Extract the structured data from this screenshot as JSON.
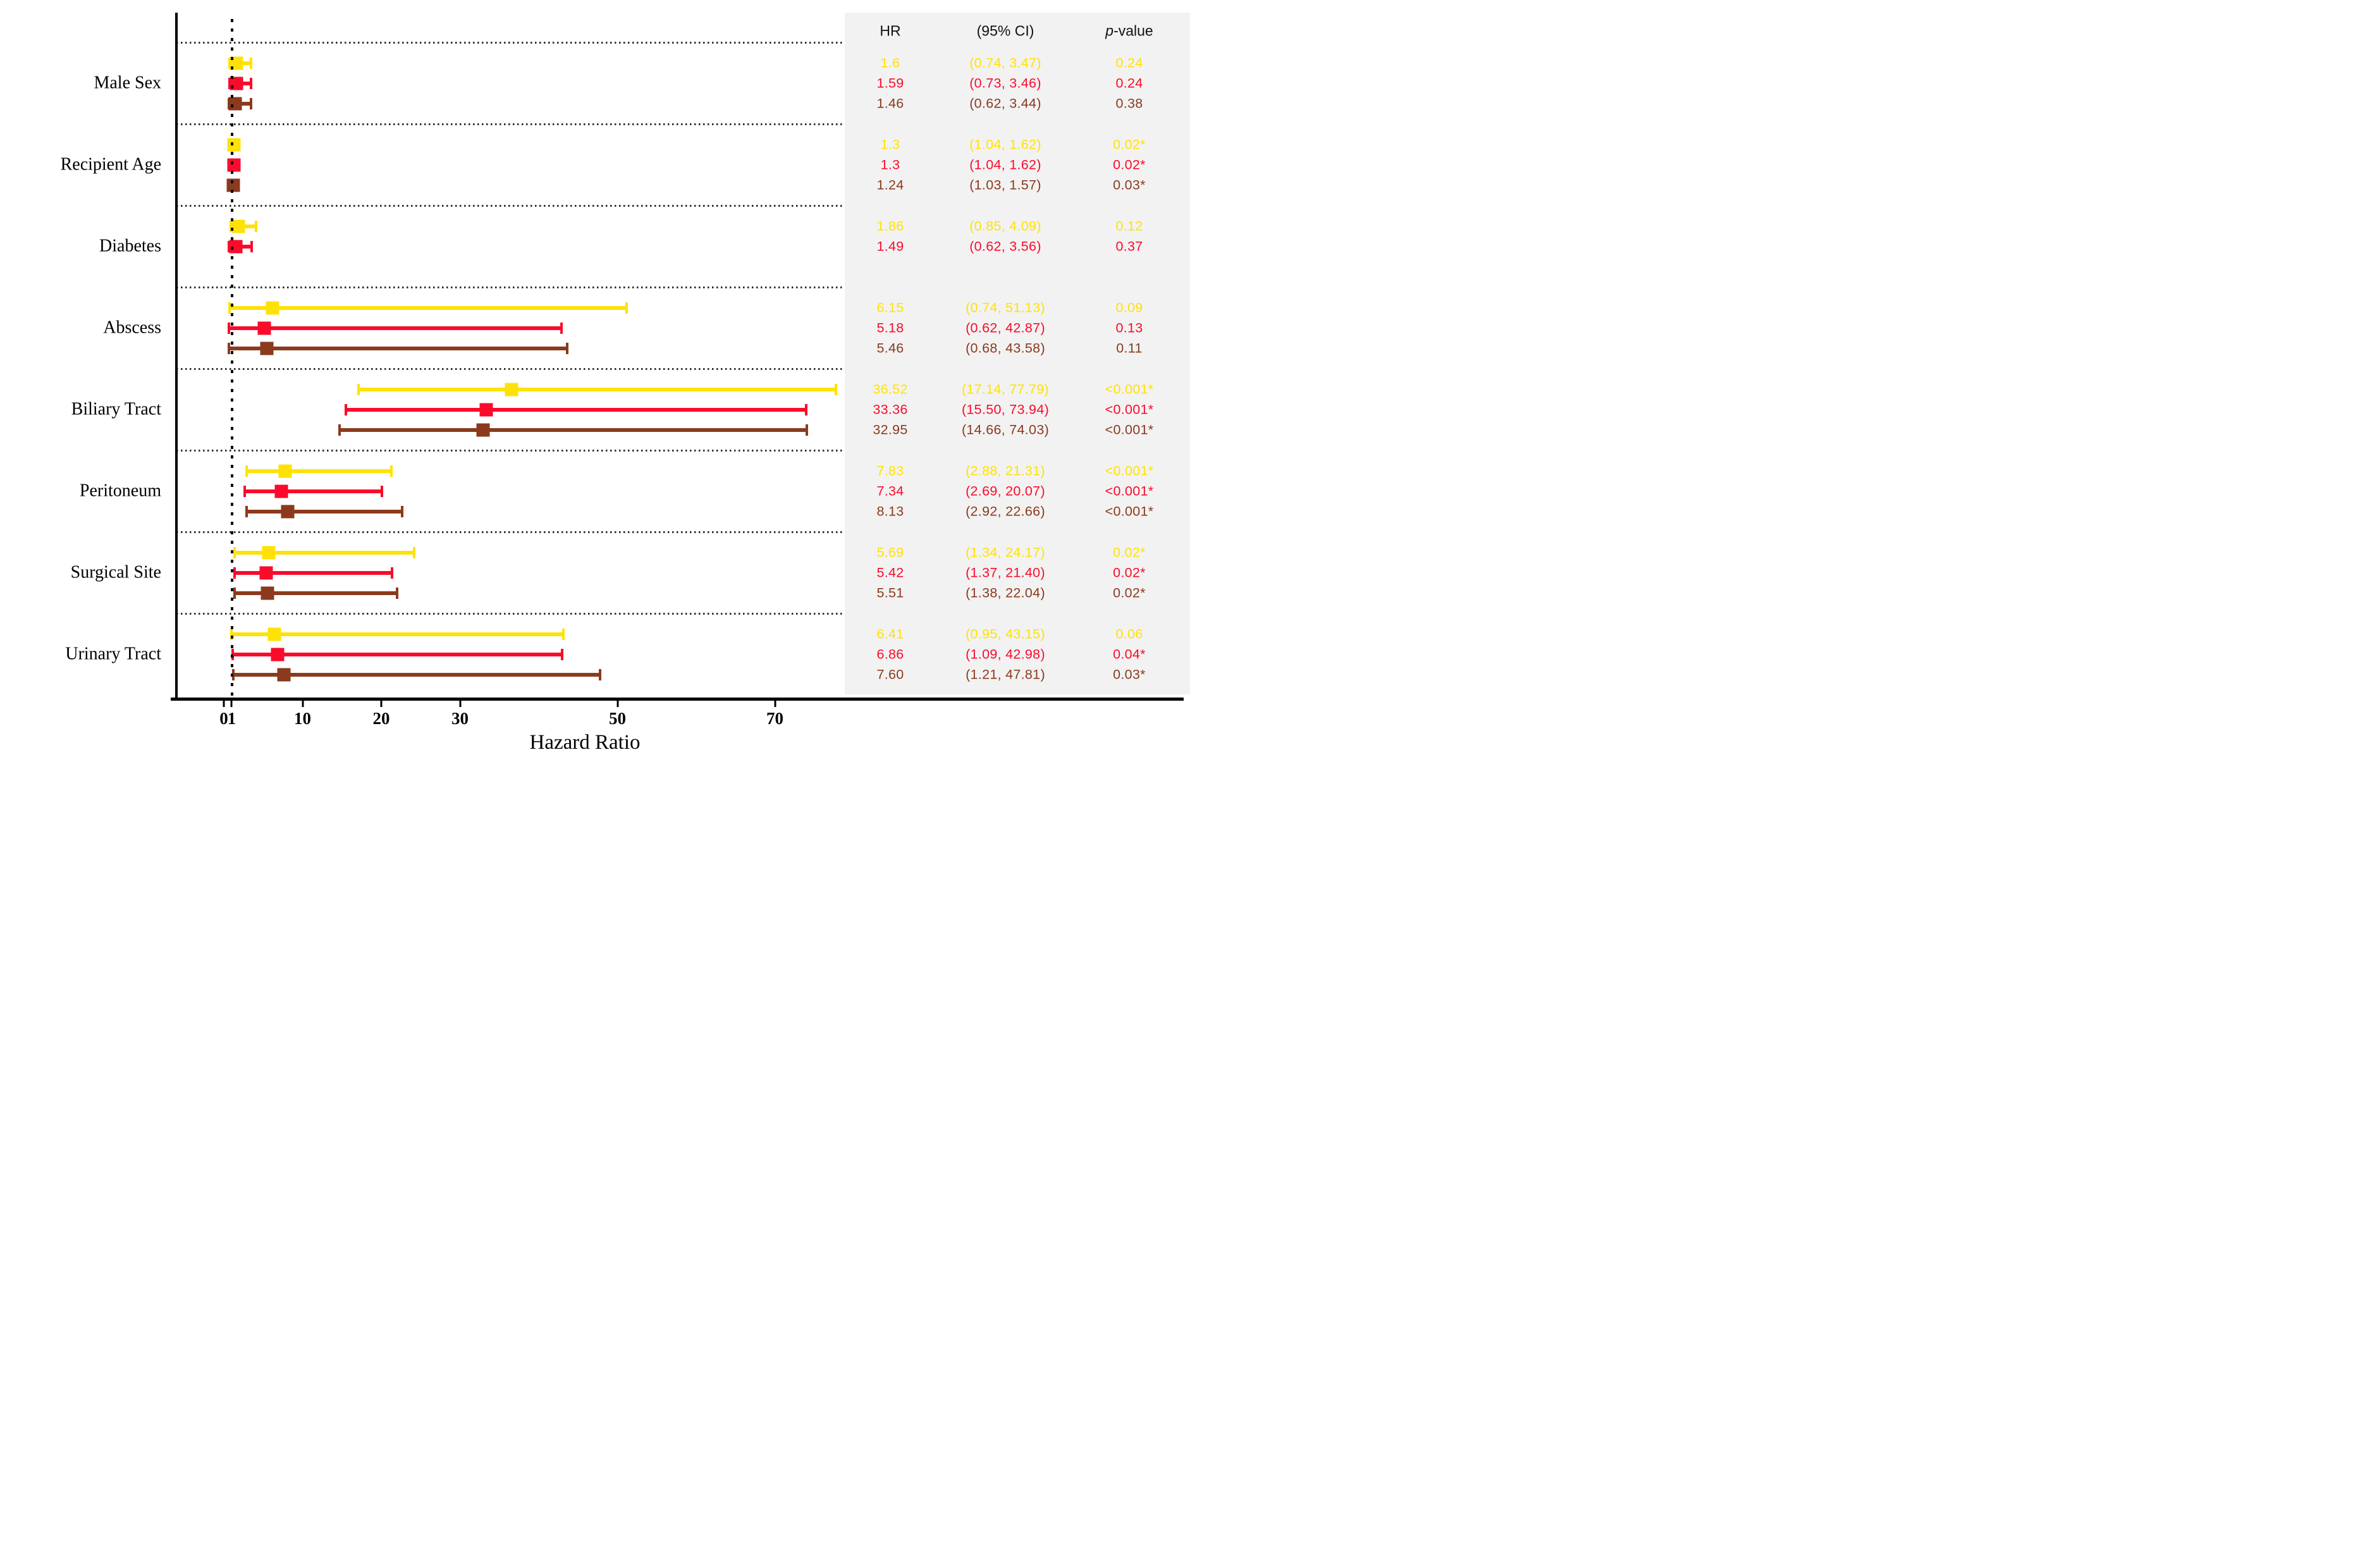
{
  "figure": {
    "x_axis_title": "Hazard Ratio",
    "table_headers": {
      "hr": "HR",
      "ci": "(95% CI)",
      "p_italic": "p",
      "p_rest": "-value"
    }
  },
  "chart_data": {
    "type": "forest",
    "title": "",
    "xlabel": "Hazard Ratio",
    "ylabel": "",
    "x_axis": {
      "scale": "linear",
      "ticks": [
        0,
        1,
        10,
        20,
        30,
        50,
        70
      ],
      "range": [
        -6,
        79
      ],
      "reference_line": 1
    },
    "grid": "dotted horizontal separators between groups, dotted vertical reference line at HR=1",
    "legend_position": "none",
    "table_headers": [
      "HR",
      "(95% CI)",
      "p-value"
    ],
    "series_colors": {
      "yellow": "#FFE205",
      "red": "#FB0B2B",
      "brown": "#8B3A1D"
    },
    "series_order": [
      "yellow",
      "red",
      "brown"
    ],
    "groups": [
      {
        "label": "Male Sex",
        "rows": [
          {
            "series": "yellow",
            "hr": 1.6,
            "lo": 0.74,
            "hi": 3.47,
            "hr_text": "1.6",
            "ci_text": "(0.74, 3.47)",
            "p_text": "0.24"
          },
          {
            "series": "red",
            "hr": 1.59,
            "lo": 0.73,
            "hi": 3.46,
            "hr_text": "1.59",
            "ci_text": "(0.73, 3.46)",
            "p_text": "0.24"
          },
          {
            "series": "brown",
            "hr": 1.46,
            "lo": 0.62,
            "hi": 3.44,
            "hr_text": "1.46",
            "ci_text": "(0.62, 3.44)",
            "p_text": "0.38"
          }
        ]
      },
      {
        "label": "Recipient Age",
        "rows": [
          {
            "series": "yellow",
            "hr": 1.3,
            "lo": 1.04,
            "hi": 1.62,
            "hr_text": "1.3",
            "ci_text": "(1.04, 1.62)",
            "p_text": "0.02*"
          },
          {
            "series": "red",
            "hr": 1.3,
            "lo": 1.04,
            "hi": 1.62,
            "hr_text": "1.3",
            "ci_text": "(1.04, 1.62)",
            "p_text": "0.02*"
          },
          {
            "series": "brown",
            "hr": 1.24,
            "lo": 1.03,
            "hi": 1.57,
            "hr_text": "1.24",
            "ci_text": "(1.03, 1.57)",
            "p_text": "0.03*"
          }
        ]
      },
      {
        "label": "Diabetes",
        "rows": [
          {
            "series": "yellow",
            "hr": 1.86,
            "lo": 0.85,
            "hi": 4.09,
            "hr_text": "1.86",
            "ci_text": "(0.85, 4.09)",
            "p_text": "0.12"
          },
          {
            "series": "red",
            "hr": 1.49,
            "lo": 0.62,
            "hi": 3.56,
            "hr_text": "1.49",
            "ci_text": "(0.62, 3.56)",
            "p_text": "0.37"
          }
        ]
      },
      {
        "label": "Abscess",
        "rows": [
          {
            "series": "yellow",
            "hr": 6.15,
            "lo": 0.74,
            "hi": 51.13,
            "hr_text": "6.15",
            "ci_text": "(0.74, 51.13)",
            "p_text": "0.09"
          },
          {
            "series": "red",
            "hr": 5.18,
            "lo": 0.62,
            "hi": 42.87,
            "hr_text": "5.18",
            "ci_text": "(0.62, 42.87)",
            "p_text": "0.13"
          },
          {
            "series": "brown",
            "hr": 5.46,
            "lo": 0.68,
            "hi": 43.58,
            "hr_text": "5.46",
            "ci_text": "(0.68, 43.58)",
            "p_text": "0.11"
          }
        ]
      },
      {
        "label": "Biliary Tract",
        "rows": [
          {
            "series": "yellow",
            "hr": 36.52,
            "lo": 17.14,
            "hi": 77.79,
            "hr_text": "36.52",
            "ci_text": "(17.14, 77.79)",
            "p_text": "<0.001*"
          },
          {
            "series": "red",
            "hr": 33.36,
            "lo": 15.5,
            "hi": 73.94,
            "hr_text": "33.36",
            "ci_text": "(15.50, 73.94)",
            "p_text": "<0.001*"
          },
          {
            "series": "brown",
            "hr": 32.95,
            "lo": 14.66,
            "hi": 74.03,
            "hr_text": "32.95",
            "ci_text": "(14.66, 74.03)",
            "p_text": "<0.001*"
          }
        ]
      },
      {
        "label": "Peritoneum",
        "rows": [
          {
            "series": "yellow",
            "hr": 7.83,
            "lo": 2.88,
            "hi": 21.31,
            "hr_text": "7.83",
            "ci_text": "(2.88, 21.31)",
            "p_text": "<0.001*"
          },
          {
            "series": "red",
            "hr": 7.34,
            "lo": 2.69,
            "hi": 20.07,
            "hr_text": "7.34",
            "ci_text": "(2.69, 20.07)",
            "p_text": "<0.001*"
          },
          {
            "series": "brown",
            "hr": 8.13,
            "lo": 2.92,
            "hi": 22.66,
            "hr_text": "8.13",
            "ci_text": "(2.92, 22.66)",
            "p_text": "<0.001*"
          }
        ]
      },
      {
        "label": "Surgical Site",
        "rows": [
          {
            "series": "yellow",
            "hr": 5.69,
            "lo": 1.34,
            "hi": 24.17,
            "hr_text": "5.69",
            "ci_text": "(1.34, 24.17)",
            "p_text": "0.02*"
          },
          {
            "series": "red",
            "hr": 5.42,
            "lo": 1.37,
            "hi": 21.4,
            "hr_text": "5.42",
            "ci_text": "(1.37, 21.40)",
            "p_text": "0.02*"
          },
          {
            "series": "brown",
            "hr": 5.51,
            "lo": 1.38,
            "hi": 22.04,
            "hr_text": "5.51",
            "ci_text": "(1.38, 22.04)",
            "p_text": "0.02*"
          }
        ]
      },
      {
        "label": "Urinary Tract",
        "rows": [
          {
            "series": "yellow",
            "hr": 6.41,
            "lo": 0.95,
            "hi": 43.15,
            "hr_text": "6.41",
            "ci_text": "(0.95, 43.15)",
            "p_text": "0.06"
          },
          {
            "series": "red",
            "hr": 6.86,
            "lo": 1.09,
            "hi": 42.98,
            "hr_text": "6.86",
            "ci_text": "(1.09, 42.98)",
            "p_text": "0.04*"
          },
          {
            "series": "brown",
            "hr": 7.6,
            "lo": 1.21,
            "hi": 47.81,
            "hr_text": "7.60",
            "ci_text": "(1.21, 47.81)",
            "p_text": "0.03*"
          }
        ]
      }
    ]
  }
}
